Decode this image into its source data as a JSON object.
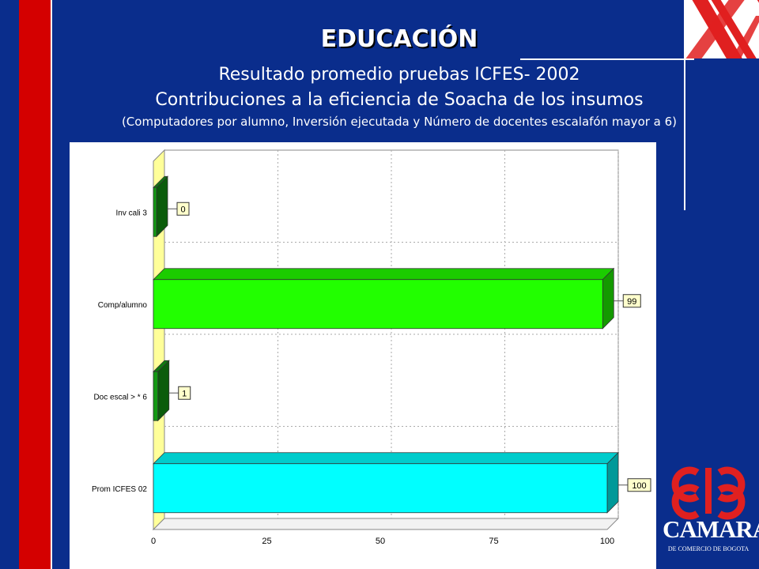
{
  "header": {
    "title": "EDUCACIÓN",
    "subtitle1": "Resultado promedio pruebas ICFES- 2002",
    "subtitle2": "Contribuciones a la eficiencia de Soacha de los insumos",
    "subtitle3": "(Computadores por alumno, Inversión ejecutada y Número de docentes escalafón mayor a 6)"
  },
  "logo": {
    "name": "CAMARA",
    "subtitle": "DE COMERCIO DE BOGOTA"
  },
  "colors": {
    "background": "#0a2d8c",
    "stripe_red": "#d40000",
    "logo_red": "#e02020"
  },
  "chart_data": {
    "type": "bar",
    "orientation": "horizontal",
    "categories": [
      "Inv cali 3",
      "Comp/alumno",
      "Doc escal > * 6",
      "Prom ICFES 02"
    ],
    "values": [
      0,
      99,
      1,
      100
    ],
    "value_labels": [
      "0",
      "99",
      "1",
      "100"
    ],
    "bar_colors": [
      "#139a13",
      "#22ff00",
      "#139a13",
      "#00ffff"
    ],
    "xlim": [
      0,
      100
    ],
    "xticks": [
      "0",
      "25",
      "50",
      "75",
      "100"
    ],
    "grid": true
  }
}
